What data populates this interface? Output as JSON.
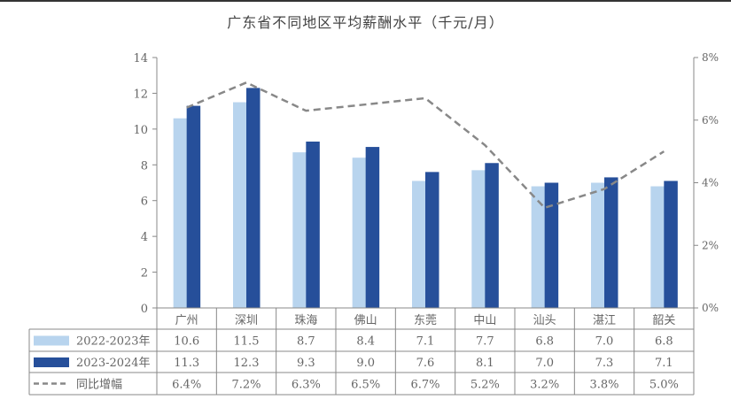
{
  "chart_data": {
    "type": "bar",
    "title": "广东省不同地区平均薪酬水平（千元/月）",
    "categories": [
      "广州",
      "深圳",
      "珠海",
      "佛山",
      "东莞",
      "中山",
      "汕头",
      "湛江",
      "韶关"
    ],
    "series": [
      {
        "name": "2022-2023年",
        "type": "bar",
        "axis": "left",
        "color": "#b8d4ee",
        "values": [
          10.6,
          11.5,
          8.7,
          8.4,
          7.1,
          7.7,
          6.8,
          7.0,
          6.8
        ]
      },
      {
        "name": "2023-2024年",
        "type": "bar",
        "axis": "left",
        "color": "#264f9a",
        "values": [
          11.3,
          12.3,
          9.3,
          9.0,
          7.6,
          8.1,
          7.0,
          7.3,
          7.1
        ]
      },
      {
        "name": "同比增幅",
        "type": "line",
        "style": "dashed",
        "axis": "right",
        "color": "#888888",
        "values": [
          6.4,
          7.2,
          6.3,
          6.5,
          6.7,
          5.2,
          3.2,
          3.8,
          5.0
        ],
        "labels": [
          "6.4%",
          "7.2%",
          "6.3%",
          "6.5%",
          "6.7%",
          "5.2%",
          "3.2%",
          "3.8%",
          "5.0%"
        ]
      }
    ],
    "ylim_left": [
      0,
      14
    ],
    "yticks_left": [
      "0",
      "2",
      "4",
      "6",
      "8",
      "10",
      "12",
      "14"
    ],
    "ylim_right": [
      0,
      8
    ],
    "yticks_right": [
      "0%",
      "2%",
      "4%",
      "6%",
      "8%"
    ],
    "grid": false,
    "legend": "data-table-bottom"
  }
}
